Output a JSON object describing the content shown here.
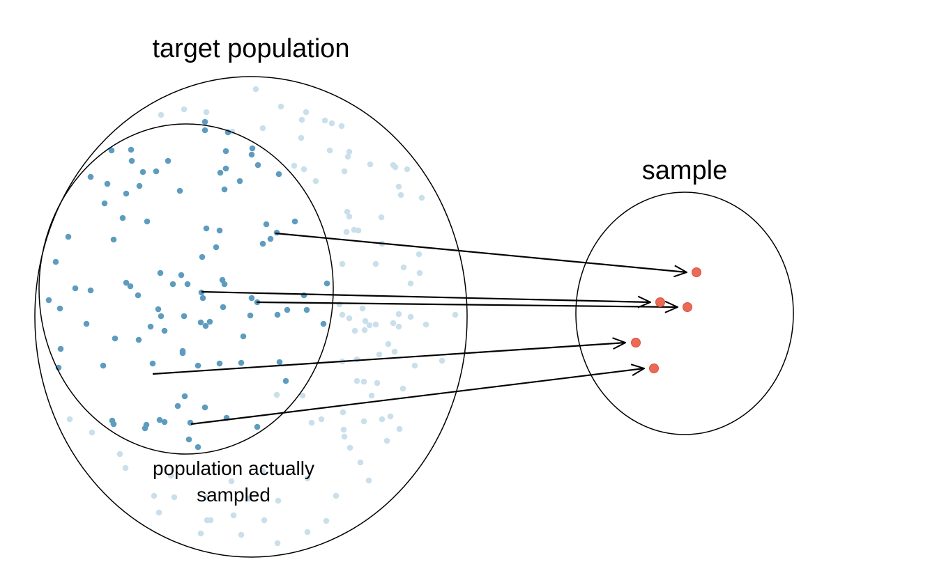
{
  "labels": {
    "target_population": "target population",
    "sample": "sample",
    "population_sampled_line1": "population actually",
    "population_sampled_line2": "sampled"
  },
  "colors": {
    "target_point": "#c9dfeb",
    "sampled_point": "#5e9cbf",
    "sample_point": "#ec6a55",
    "outline": "#000000"
  }
}
